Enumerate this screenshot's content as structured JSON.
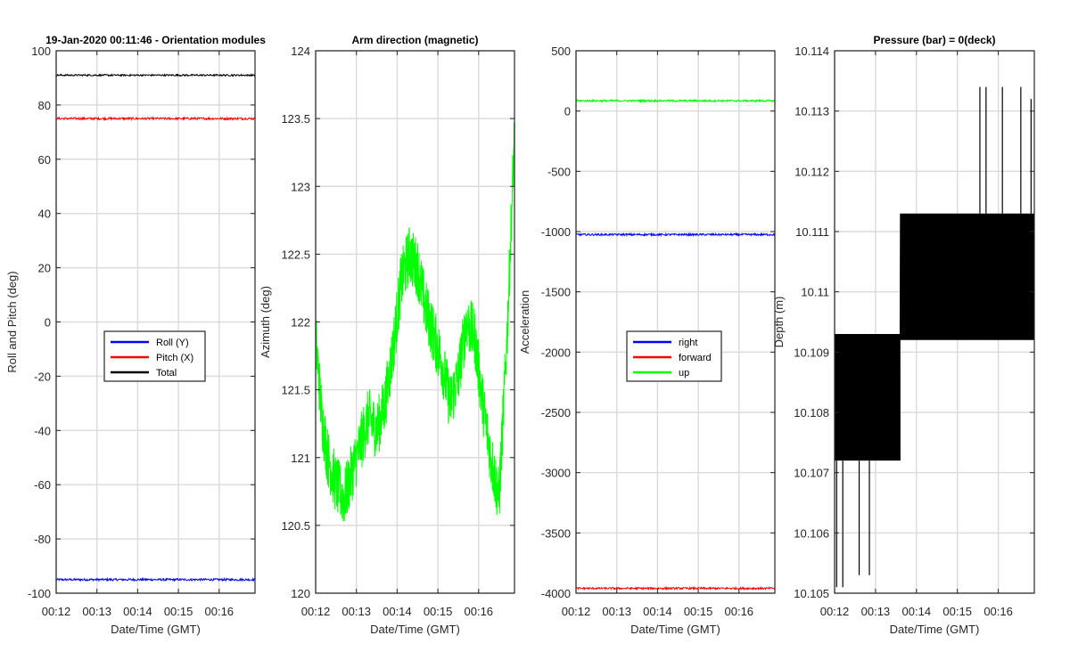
{
  "chart_data": [
    {
      "type": "line",
      "title": "19-Jan-2020 00:11:46 - Orientation modules",
      "xlabel": "Date/Time (GMT)",
      "ylabel": "Roll and Pitch (deg)",
      "xticks": [
        "00:12",
        "00:13",
        "00:14",
        "00:15",
        "00:16"
      ],
      "xlim_minutes": [
        12.0,
        16.88
      ],
      "ylim": [
        -100,
        100
      ],
      "yticks": [
        -100,
        -80,
        -60,
        -40,
        -20,
        0,
        20,
        40,
        60,
        80,
        100
      ],
      "grid": true,
      "legend_position": "center",
      "series": [
        {
          "name": "Roll (Y)",
          "color": "#0000ff",
          "mean": -95,
          "noise": 0.4
        },
        {
          "name": "Pitch (X)",
          "color": "#ff0000",
          "mean": 75,
          "noise": 0.4
        },
        {
          "name": "Total",
          "color": "#000000",
          "mean": 91,
          "noise": 0.3
        }
      ]
    },
    {
      "type": "line",
      "title": "Arm direction (magnetic)",
      "xlabel": "Date/Time (GMT)",
      "ylabel": "Azimuth (deg)",
      "xticks": [
        "00:12",
        "00:13",
        "00:14",
        "00:15",
        "00:16"
      ],
      "xlim_minutes": [
        12.0,
        16.88
      ],
      "ylim": [
        120,
        124
      ],
      "yticks": [
        120,
        120.5,
        121,
        121.5,
        122,
        122.5,
        123,
        123.5,
        124
      ],
      "grid": true,
      "series": [
        {
          "color": "#00ff00",
          "noise": 0.22,
          "x": [
            12.0,
            12.15,
            12.3,
            12.5,
            12.7,
            12.9,
            13.1,
            13.3,
            13.5,
            13.7,
            13.9,
            14.1,
            14.3,
            14.5,
            14.7,
            14.9,
            15.1,
            15.3,
            15.5,
            15.7,
            15.9,
            16.1,
            16.3,
            16.5,
            16.7,
            16.88
          ],
          "y": [
            121.9,
            121.3,
            121.0,
            120.8,
            120.7,
            120.9,
            121.1,
            121.3,
            121.2,
            121.4,
            121.8,
            122.3,
            122.5,
            122.4,
            122.1,
            121.9,
            121.7,
            121.4,
            121.6,
            122.0,
            121.9,
            121.4,
            121.0,
            120.7,
            121.9,
            123.4
          ]
        }
      ]
    },
    {
      "type": "line",
      "title": "",
      "xlabel": "Date/Time (GMT)",
      "ylabel": "Acceleration",
      "xticks": [
        "00:12",
        "00:13",
        "00:14",
        "00:15",
        "00:16"
      ],
      "xlim_minutes": [
        12.0,
        16.88
      ],
      "ylim": [
        -4000,
        500
      ],
      "yticks": [
        -4000,
        -3500,
        -3000,
        -2500,
        -2000,
        -1500,
        -1000,
        -500,
        0,
        500
      ],
      "grid": true,
      "legend_position": "center",
      "series": [
        {
          "name": "right",
          "color": "#0000ff",
          "mean": -1025,
          "noise": 8
        },
        {
          "name": "forward",
          "color": "#ff0000",
          "mean": -3960,
          "noise": 8
        },
        {
          "name": "up",
          "color": "#00ff00",
          "mean": 85,
          "noise": 8
        }
      ]
    },
    {
      "type": "line",
      "title": "Pressure (bar) = 0(deck)",
      "xlabel": "Date/Time (GMT)",
      "ylabel": "Depth (m)",
      "xticks": [
        "00:12",
        "00:13",
        "00:14",
        "00:15",
        "00:16"
      ],
      "xlim_minutes": [
        12.0,
        16.88
      ],
      "ylim": [
        10.105,
        10.114
      ],
      "yticks": [
        10.105,
        10.106,
        10.107,
        10.108,
        10.109,
        10.11,
        10.111,
        10.112,
        10.113,
        10.114
      ],
      "ytick_labels": [
        "10.105",
        "10.106",
        "10.107",
        "10.108",
        "10.109",
        "10.11",
        "10.111",
        "10.112",
        "10.113",
        "10.114"
      ],
      "grid": true,
      "series": [
        {
          "color": "#000000",
          "segments": [
            {
              "x0": 12.0,
              "x1": 13.6,
              "levels": [
                10.1072,
                10.1093
              ]
            },
            {
              "x0": 13.6,
              "x1": 16.88,
              "levels": [
                10.1092,
                10.1113
              ]
            }
          ],
          "spikes_low": [
            {
              "x": 12.05,
              "y": 10.1051
            },
            {
              "x": 12.2,
              "y": 10.1051
            },
            {
              "x": 12.6,
              "y": 10.1053
            },
            {
              "x": 12.85,
              "y": 10.1053
            }
          ],
          "spikes_high": [
            {
              "x": 15.55,
              "y": 10.1134
            },
            {
              "x": 15.7,
              "y": 10.1134
            },
            {
              "x": 16.1,
              "y": 10.1134
            },
            {
              "x": 16.55,
              "y": 10.1134
            },
            {
              "x": 16.8,
              "y": 10.1132
            }
          ]
        }
      ]
    }
  ]
}
